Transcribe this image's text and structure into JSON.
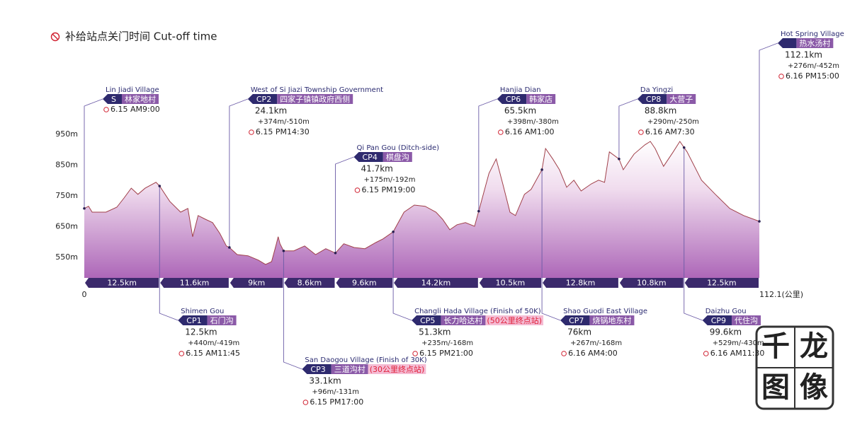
{
  "title": "补给站点关门时间  Cut-off time",
  "watermark": [
    "千",
    "龙",
    "图",
    "像"
  ],
  "chart_data": {
    "type": "area",
    "x": [
      0,
      0.7,
      1.3,
      3.6,
      5.4,
      6.6,
      7.8,
      8.9,
      10.1,
      11.9,
      12.5,
      14.2,
      16.0,
      17.2,
      18.0,
      18.9,
      20.1,
      21.3,
      22.5,
      23.6,
      24.1,
      25.4,
      27.2,
      28.9,
      30.1,
      31.1,
      31.9,
      32.2,
      32.5,
      33.1,
      34.8,
      36.6,
      38.4,
      40.1,
      41.7,
      43.1,
      44.8,
      46.6,
      48.4,
      49.6,
      51.3,
      53.1,
      54.8,
      56.6,
      58.4,
      59.5,
      60.7,
      61.9,
      63.3,
      64.8,
      65.5,
      67.2,
      68.4,
      69.5,
      70.7,
      71.6,
      73.1,
      74.2,
      76.0,
      76.6,
      77.8,
      78.9,
      80.1,
      81.3,
      82.5,
      84.2,
      85.4,
      86.4,
      87.2,
      88.8,
      89.5,
      91.3,
      93.1,
      94.0,
      94.8,
      96.2,
      97.8,
      98.9,
      100.1,
      102.5,
      104.8,
      107.2,
      109.5,
      112.1
    ],
    "values": [
      709,
      716,
      697,
      697,
      713,
      743,
      775,
      755,
      775,
      794,
      782,
      732,
      697,
      709,
      617,
      686,
      674,
      663,
      628,
      587,
      582,
      559,
      555,
      541,
      527,
      536,
      594,
      617,
      594,
      571,
      571,
      587,
      559,
      578,
      564,
      594,
      582,
      578,
      598,
      610,
      633,
      697,
      720,
      716,
      697,
      674,
      640,
      656,
      663,
      651,
      700,
      823,
      870,
      789,
      697,
      686,
      755,
      771,
      835,
      904,
      870,
      835,
      778,
      801,
      766,
      789,
      801,
      794,
      893,
      870,
      835,
      886,
      916,
      927,
      904,
      846,
      893,
      927,
      893,
      801,
      755,
      709,
      686,
      667
    ],
    "color": "#a9489a",
    "line_color": "#a0404a",
    "xlim": [
      0,
      112.1
    ],
    "xticks": [
      0,
      {
        "value": 112.1,
        "label": "112.1(公里)"
      }
    ],
    "ylim": [
      483,
      996
    ],
    "yticks": [
      {
        "value": 550,
        "label": "550m"
      },
      {
        "value": 650,
        "label": "650m"
      },
      {
        "value": 750,
        "label": "750m"
      },
      {
        "value": 850,
        "label": "850m"
      },
      {
        "value": 950,
        "label": "950m"
      }
    ],
    "grid": false,
    "segments": [
      {
        "value": 12.5,
        "label": "12.5km"
      },
      {
        "value": 11.6,
        "label": "11.6km"
      },
      {
        "value": 9,
        "label": "9km"
      },
      {
        "value": 8.6,
        "label": "8.6km"
      },
      {
        "value": 9.6,
        "label": "9.6km"
      },
      {
        "value": 14.2,
        "label": "14.2km"
      },
      {
        "value": 10.5,
        "label": "10.5km"
      },
      {
        "value": 12.8,
        "label": "12.8km"
      },
      {
        "value": 10.8,
        "label": "10.8km"
      },
      {
        "value": 12.5,
        "label": "12.5km"
      }
    ],
    "checkpoints": [
      {
        "en": "Lin Jiadi Village",
        "code": "S",
        "cn": "林家地村",
        "time": "6.15 AM9:00"
      },
      {
        "en": "Shimen Gou",
        "code": "CP1",
        "cn": "石门沟",
        "distance": {
          "value": 12.5,
          "label": "12.5km"
        },
        "gain": "+440m/-419m",
        "time": "6.15  AM11:45"
      },
      {
        "en": "West of Si Jiazi Township Government",
        "code": "CP2",
        "cn": "四家子镇镇政府西侧",
        "distance": {
          "value": 24.1,
          "label": "24.1km"
        },
        "gain": "+374m/-510m",
        "time": "6.15  PM14:30"
      },
      {
        "en": "San Daogou Village (Finish of 30K)",
        "code": "CP3",
        "cn": "三道沟村",
        "note": "(30公里终点站)",
        "distance": {
          "value": 33.1,
          "label": "33.1km"
        },
        "gain": "+96m/-131m",
        "time": "6.15  PM17:00"
      },
      {
        "en": "Qi Pan Gou (Ditch-side)",
        "code": "CP4",
        "cn": "棋盘沟",
        "distance": {
          "value": 41.7,
          "label": "41.7km"
        },
        "gain": "+175m/-192m",
        "time": "6.15  PM19:00"
      },
      {
        "en": "Changli Hada Village (Finish of 50K)",
        "code": "CP5",
        "cn": "长力哈达村",
        "note": "(50公里终点站)",
        "distance": {
          "value": 51.3,
          "label": "51.3km"
        },
        "gain": "+235m/-168m",
        "time": "6.15  PM21:00"
      },
      {
        "en": "Hanjia Dian",
        "code": "CP6",
        "cn": "韩家店",
        "distance": {
          "value": 65.5,
          "label": "65.5km"
        },
        "gain": "+398m/-380m",
        "time": "6.16  AM1:00"
      },
      {
        "en": "Shao Guodi East Village",
        "code": "CP7",
        "cn": "烧锅地东村",
        "distance": {
          "value": 76,
          "label": "76km"
        },
        "gain": "+267m/-168m",
        "time": "6.16  AM4:00"
      },
      {
        "en": "Da Yingzi",
        "code": "CP8",
        "cn": "大营子",
        "distance": {
          "value": 88.8,
          "label": "88.8km"
        },
        "gain": "+290m/-250m",
        "time": "6.16  AM7:30"
      },
      {
        "en": "Daizhu Gou",
        "code": "CP9",
        "cn": "代住沟",
        "distance": {
          "value": 99.6,
          "label": "99.6km"
        },
        "gain": "+529m/-430m",
        "time": "6.16  AM11:30"
      },
      {
        "en": "Hot Spring Village",
        "code": "F",
        "cn": "热水汤村",
        "distance": {
          "value": 112.1,
          "label": "112.1km"
        },
        "gain": "+276m/-452m",
        "time": "6.16  PM15:00"
      }
    ]
  }
}
